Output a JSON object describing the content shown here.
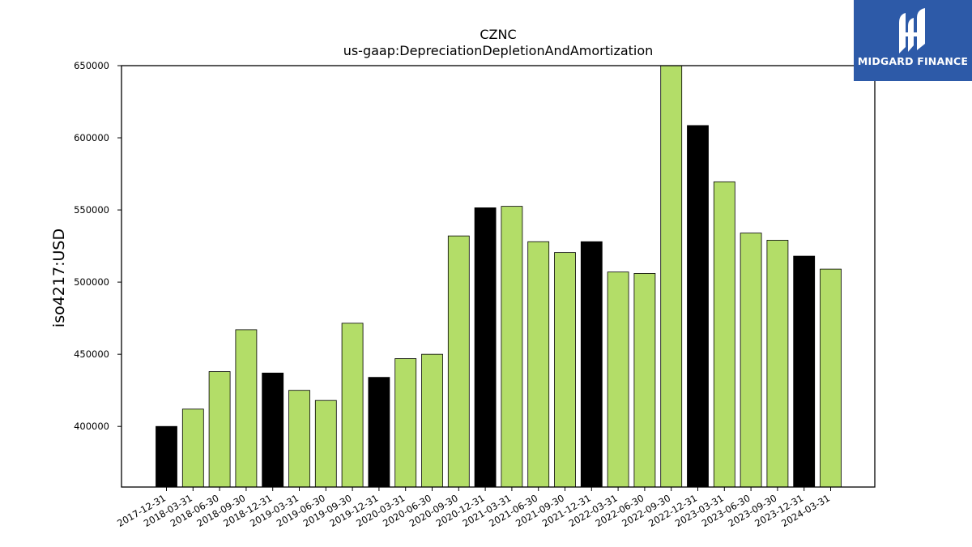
{
  "chart_data": {
    "type": "bar",
    "title": "CZNC",
    "subtitle": "us-gaap:DepreciationDepletionAndAmortization",
    "xlabel": "",
    "ylabel": "iso4217:USD",
    "ylim": [
      358000,
      650000
    ],
    "yticks": [
      400000,
      450000,
      500000,
      550000,
      600000,
      650000
    ],
    "ytick_labels": [
      "400000",
      "450000",
      "500000",
      "550000",
      "600000",
      "650000"
    ],
    "grid": false,
    "legend": "none",
    "colors": {
      "annual": "#000000",
      "quarterly": "#b3dd68",
      "edge": "#000000"
    },
    "categories": [
      "2017-12-31",
      "2018-03-31",
      "2018-06-30",
      "2018-09-30",
      "2018-12-31",
      "2019-03-31",
      "2019-06-30",
      "2019-09-30",
      "2019-12-31",
      "2020-03-31",
      "2020-06-30",
      "2020-09-30",
      "2020-12-31",
      "2021-03-31",
      "2021-06-30",
      "2021-09-30",
      "2021-12-31",
      "2022-03-31",
      "2022-06-30",
      "2022-09-30",
      "2022-12-31",
      "2023-03-31",
      "2023-06-30",
      "2023-09-30",
      "2023-12-31",
      "2024-03-31"
    ],
    "values": [
      400000,
      412000,
      438000,
      467000,
      437000,
      425000,
      418000,
      471500,
      434000,
      447000,
      450000,
      532000,
      551500,
      552500,
      528000,
      520500,
      528000,
      507000,
      506000,
      650000,
      608500,
      569500,
      534000,
      529000,
      518000,
      509000
    ],
    "bar_kind": [
      "annual",
      "quarterly",
      "quarterly",
      "quarterly",
      "annual",
      "quarterly",
      "quarterly",
      "quarterly",
      "annual",
      "quarterly",
      "quarterly",
      "quarterly",
      "annual",
      "quarterly",
      "quarterly",
      "quarterly",
      "annual",
      "quarterly",
      "quarterly",
      "quarterly",
      "annual",
      "quarterly",
      "quarterly",
      "quarterly",
      "annual",
      "quarterly"
    ]
  },
  "logo": {
    "text": "MIDGARD FINANCE",
    "icon": "midgard-logo-icon",
    "background": "#2d5aa8"
  }
}
